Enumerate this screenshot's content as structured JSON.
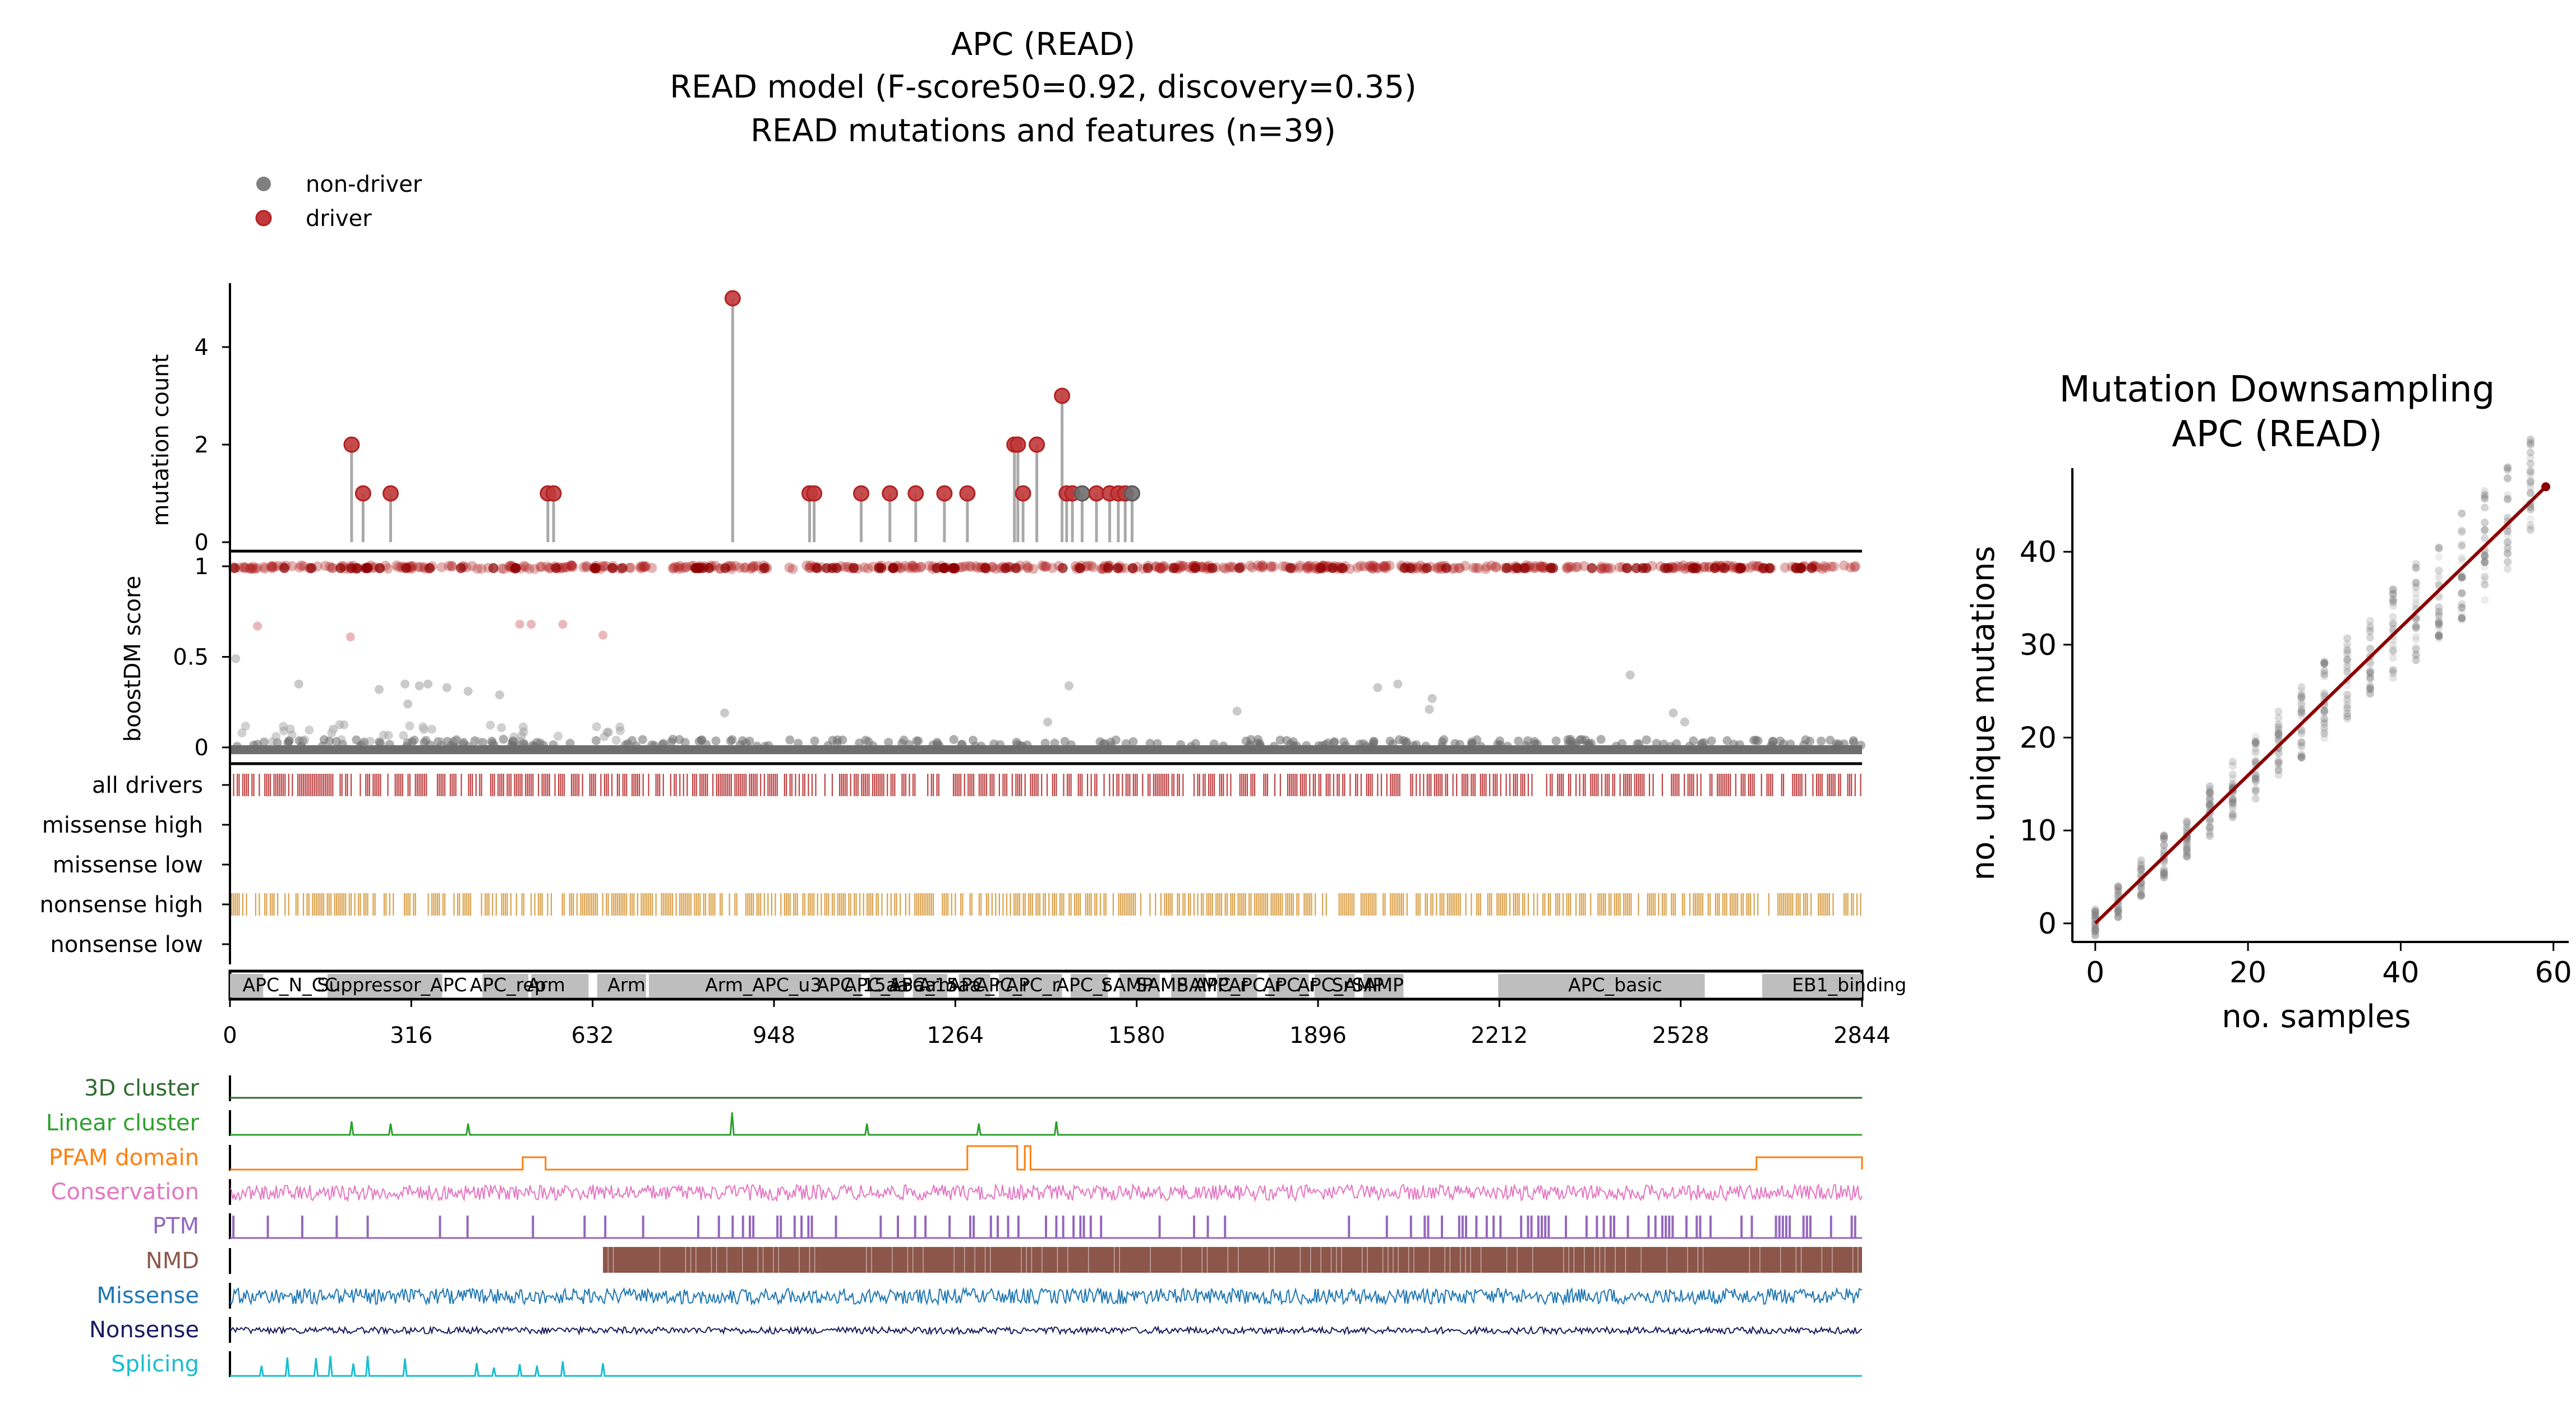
{
  "title": {
    "line1": "APC (READ)",
    "line2": "READ model (F-score50=0.92, discovery=0.35)",
    "line3": "READ mutations and features (n=39)"
  },
  "legend": {
    "items": [
      {
        "label": "non-driver",
        "color": "#7f7f7f"
      },
      {
        "label": "driver",
        "color": "#b22222"
      }
    ]
  },
  "colors": {
    "driver": "#b22222",
    "driver_dark": "#8b0000",
    "nondriver": "#6e6e6e",
    "stem": "#a9a9a9",
    "nonsense_high": "#d4902a",
    "domain": "#bebebe",
    "regression": "#8b0000"
  },
  "chart_data": [
    {
      "type": "lollipop",
      "panel": "mutation-count",
      "ylabel": "mutation count",
      "yticks": [
        0,
        2,
        4
      ],
      "ylim": [
        0,
        5.3
      ],
      "xlim": [
        0,
        2844
      ],
      "mutations": [
        {
          "pos": 212,
          "count": 2,
          "driver": true
        },
        {
          "pos": 232,
          "count": 1,
          "driver": true
        },
        {
          "pos": 280,
          "count": 1,
          "driver": true
        },
        {
          "pos": 554,
          "count": 1,
          "driver": true
        },
        {
          "pos": 564,
          "count": 1,
          "driver": true
        },
        {
          "pos": 876,
          "count": 5,
          "driver": true
        },
        {
          "pos": 1010,
          "count": 1,
          "driver": true
        },
        {
          "pos": 1018,
          "count": 1,
          "driver": true
        },
        {
          "pos": 1100,
          "count": 1,
          "driver": true
        },
        {
          "pos": 1150,
          "count": 1,
          "driver": true
        },
        {
          "pos": 1195,
          "count": 1,
          "driver": true
        },
        {
          "pos": 1245,
          "count": 1,
          "driver": true
        },
        {
          "pos": 1285,
          "count": 1,
          "driver": true
        },
        {
          "pos": 1367,
          "count": 2,
          "driver": true
        },
        {
          "pos": 1373,
          "count": 2,
          "driver": true
        },
        {
          "pos": 1382,
          "count": 1,
          "driver": true
        },
        {
          "pos": 1406,
          "count": 2,
          "driver": true
        },
        {
          "pos": 1450,
          "count": 3,
          "driver": true
        },
        {
          "pos": 1458,
          "count": 1,
          "driver": true
        },
        {
          "pos": 1468,
          "count": 1,
          "driver": true
        },
        {
          "pos": 1485,
          "count": 1,
          "driver": false
        },
        {
          "pos": 1510,
          "count": 1,
          "driver": true
        },
        {
          "pos": 1533,
          "count": 1,
          "driver": true
        },
        {
          "pos": 1548,
          "count": 1,
          "driver": true
        },
        {
          "pos": 1560,
          "count": 1,
          "driver": true
        },
        {
          "pos": 1572,
          "count": 1,
          "driver": false
        }
      ]
    },
    {
      "type": "scatter",
      "panel": "boostdm-score",
      "ylabel": "boostDM score",
      "yticks": [
        0,
        0.5,
        1
      ],
      "ylim": [
        -0.04,
        1.05
      ],
      "xlim": [
        0,
        2844
      ],
      "description_high_band": "dense band of driver predictions near score 1",
      "description_low_band": "dense band of non-driver predictions near score 0",
      "intermediate_points": [
        {
          "x": 10,
          "y": 0.49
        },
        {
          "x": 48,
          "y": 0.67
        },
        {
          "x": 120,
          "y": 0.35
        },
        {
          "x": 210,
          "y": 0.61
        },
        {
          "x": 260,
          "y": 0.32
        },
        {
          "x": 305,
          "y": 0.35
        },
        {
          "x": 330,
          "y": 0.34
        },
        {
          "x": 345,
          "y": 0.35
        },
        {
          "x": 378,
          "y": 0.33
        },
        {
          "x": 415,
          "y": 0.31
        },
        {
          "x": 470,
          "y": 0.29
        },
        {
          "x": 505,
          "y": 0.68
        },
        {
          "x": 525,
          "y": 0.68
        },
        {
          "x": 580,
          "y": 0.68
        },
        {
          "x": 650,
          "y": 0.62
        },
        {
          "x": 310,
          "y": 0.24
        },
        {
          "x": 180,
          "y": 0.1
        },
        {
          "x": 338,
          "y": 0.1
        },
        {
          "x": 862,
          "y": 0.19
        },
        {
          "x": 1462,
          "y": 0.34
        },
        {
          "x": 1425,
          "y": 0.14
        },
        {
          "x": 1755,
          "y": 0.2
        },
        {
          "x": 2000,
          "y": 0.33
        },
        {
          "x": 2035,
          "y": 0.35
        },
        {
          "x": 2095,
          "y": 0.27
        },
        {
          "x": 2090,
          "y": 0.21
        },
        {
          "x": 2440,
          "y": 0.4
        },
        {
          "x": 2515,
          "y": 0.19
        },
        {
          "x": 2535,
          "y": 0.14
        }
      ]
    },
    {
      "type": "rug",
      "panel": "consequence-tracks",
      "tracks": [
        {
          "label": "all drivers",
          "color": "#b22222",
          "filled": true
        },
        {
          "label": "missense high",
          "color": "#b22222",
          "filled": false
        },
        {
          "label": "missense low",
          "color": "#b22222",
          "filled": false
        },
        {
          "label": "nonsense high",
          "color": "#d4902a",
          "filled": true
        },
        {
          "label": "nonsense low",
          "color": "#d4902a",
          "filled": false
        }
      ]
    },
    {
      "type": "domains",
      "panel": "domain-track",
      "xlim": [
        0,
        2844
      ],
      "xticks": [
        0,
        316,
        632,
        948,
        1264,
        1580,
        1896,
        2212,
        2528,
        2844
      ],
      "domains": [
        {
          "start": 0,
          "end": 58,
          "label": "APC_N_CC"
        },
        {
          "start": 170,
          "end": 370,
          "label": "Suppressor_APC"
        },
        {
          "start": 440,
          "end": 520,
          "label": "APC_rep"
        },
        {
          "start": 525,
          "end": 625,
          "label": "Arm"
        },
        {
          "start": 640,
          "end": 725,
          "label": "Arm"
        },
        {
          "start": 730,
          "end": 1040,
          "label": "Arm_APC_u3"
        },
        {
          "start": 1030,
          "end": 1100,
          "label": "APC_15aa"
        },
        {
          "start": 1115,
          "end": 1175,
          "label": "APC_15aa"
        },
        {
          "start": 1190,
          "end": 1250,
          "label": "APC_15aa"
        },
        {
          "start": 1270,
          "end": 1325,
          "label": "Arm"
        },
        {
          "start": 1340,
          "end": 1390,
          "label": "APC_r"
        },
        {
          "start": 1390,
          "end": 1450,
          "label": "APC_r"
        },
        {
          "start": 1465,
          "end": 1530,
          "label": "APC_r"
        },
        {
          "start": 1550,
          "end": 1620,
          "label": "SAMP"
        },
        {
          "start": 1640,
          "end": 1700,
          "label": "SAMP"
        },
        {
          "start": 1720,
          "end": 1790,
          "label": "APC_r"
        },
        {
          "start": 1810,
          "end": 1880,
          "label": "APC_r"
        },
        {
          "start": 1890,
          "end": 1960,
          "label": "APC_r"
        },
        {
          "start": 1975,
          "end": 2045,
          "label": "SAMP"
        },
        {
          "start": 2210,
          "end": 2570,
          "label": "APC_basic"
        },
        {
          "start": 2670,
          "end": 2844,
          "label": "EB1_binding"
        }
      ],
      "domain_labels_shown": [
        {
          "x": 22,
          "label": "APC_N_CC"
        },
        {
          "x": 152,
          "label": "Suppressor_APC"
        },
        {
          "x": 418,
          "label": "APC_rep"
        },
        {
          "x": 518,
          "label": "Arm"
        },
        {
          "x": 658,
          "label": "Arm"
        },
        {
          "x": 828,
          "label": "Arm_APC_u3"
        },
        {
          "x": 1022,
          "label": "APC_15aa"
        },
        {
          "x": 1070,
          "label": "APC_15aa"
        },
        {
          "x": 1148,
          "label": "APC_15aa"
        },
        {
          "x": 1200,
          "label": "Arm"
        },
        {
          "x": 1252,
          "label": "APC_r"
        },
        {
          "x": 1300,
          "label": "APC_r"
        },
        {
          "x": 1352,
          "label": "APC_r"
        },
        {
          "x": 1440,
          "label": "APC_r"
        },
        {
          "x": 1518,
          "label": "SAMP"
        },
        {
          "x": 1578,
          "label": "SAMP"
        },
        {
          "x": 1650,
          "label": "SAMP"
        },
        {
          "x": 1680,
          "label": "APC_r"
        },
        {
          "x": 1740,
          "label": "APC_r"
        },
        {
          "x": 1800,
          "label": "APC_r"
        },
        {
          "x": 1860,
          "label": "APC_r"
        },
        {
          "x": 1920,
          "label": "SAMP"
        },
        {
          "x": 1955,
          "label": "SAMP"
        },
        {
          "x": 2332,
          "label": "APC_basic"
        },
        {
          "x": 2722,
          "label": "EB1_binding"
        }
      ]
    },
    {
      "type": "line",
      "panel": "feature-tracks",
      "xlim": [
        0,
        2844
      ],
      "tracks": [
        {
          "label": "3D cluster",
          "color": "#2e6b2e",
          "kind": "flat"
        },
        {
          "label": "Linear cluster",
          "color": "#2ca02c",
          "kind": "spikes",
          "spikes": [
            212,
            280,
            415,
            875,
            1110,
            1305,
            1440
          ]
        },
        {
          "label": "PFAM domain",
          "color": "#ff7f0e",
          "kind": "step",
          "segments": [
            {
              "start": 510,
              "end": 550
            },
            {
              "start": 1285,
              "end": 1380
            },
            {
              "start": 1380,
              "end": 1385
            },
            {
              "start": 2660,
              "end": 2844
            }
          ]
        },
        {
          "label": "Conservation",
          "color": "#e377c2",
          "kind": "noise"
        },
        {
          "label": "PTM",
          "color": "#9467bd",
          "kind": "bars"
        },
        {
          "label": "NMD",
          "color": "#8c564b",
          "kind": "fill",
          "start": 650,
          "end": 2844
        },
        {
          "label": "Missense",
          "color": "#1f77b4",
          "kind": "noise"
        },
        {
          "label": "Nonsense",
          "color": "#1a1a5e",
          "kind": "noise"
        },
        {
          "label": "Splicing",
          "color": "#17becf",
          "kind": "spikes",
          "spikes": [
            55,
            100,
            150,
            175,
            215,
            240,
            305,
            430,
            460,
            505,
            535,
            580,
            650
          ]
        }
      ]
    },
    {
      "type": "scatter",
      "panel": "downsampling",
      "title": [
        "Mutation Downsampling",
        "APC (READ)"
      ],
      "xlabel": "no. samples",
      "ylabel": "no. unique mutations",
      "xlim": [
        -3,
        62
      ],
      "ylim": [
        -2,
        49
      ],
      "xticks": [
        0,
        20,
        40,
        60
      ],
      "yticks": [
        0,
        10,
        20,
        30,
        40
      ],
      "sample_sizes": [
        0,
        3,
        6,
        9,
        12,
        15,
        18,
        21,
        24,
        27,
        30,
        33,
        36,
        39,
        42,
        45,
        48,
        51,
        54,
        57
      ],
      "mean_unique": [
        0,
        2.3,
        4.8,
        7.2,
        9.6,
        12.0,
        14.4,
        16.8,
        19.2,
        21.6,
        24.0,
        26.4,
        28.8,
        31.2,
        33.6,
        36.0,
        38.4,
        40.8,
        43.2,
        47
      ],
      "regression": {
        "x": [
          0,
          59
        ],
        "y": [
          0,
          47
        ],
        "color": "#8b0000"
      }
    }
  ]
}
